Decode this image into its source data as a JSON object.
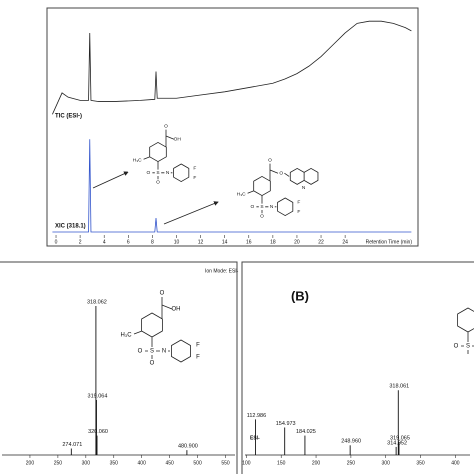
{
  "chart_data": [
    {
      "type": "line",
      "label": "TIC (ESI-)",
      "color": "#222222",
      "x": [
        -0.3,
        0.5,
        1,
        2,
        2.7,
        2.8,
        2.9,
        3.5,
        5,
        7,
        8.2,
        8.3,
        8.4,
        10,
        12,
        14,
        16,
        18,
        19,
        20,
        21,
        22,
        23,
        24,
        25,
        26,
        27,
        28,
        29,
        29.5
      ],
      "values": [
        10,
        30,
        26,
        23,
        23,
        86,
        23,
        22,
        22,
        23,
        24,
        50,
        25,
        25,
        28,
        31,
        35,
        39,
        43,
        48,
        55,
        64,
        75,
        86,
        95,
        97,
        97,
        95,
        91,
        88
      ],
      "xlim": [
        -0.5,
        29.8
      ],
      "ylim": [
        0,
        100
      ]
    },
    {
      "type": "line",
      "label": "XIC (318.1)",
      "color": "#3355cc",
      "x": [
        -0.3,
        2.7,
        2.8,
        2.9,
        8.2,
        8.3,
        8.4,
        29.5
      ],
      "values": [
        0,
        0,
        100,
        0,
        0,
        15,
        0,
        0
      ],
      "xlim": [
        -0.5,
        29.8
      ],
      "ylim": [
        0,
        110
      ],
      "xticks": [
        0,
        2,
        4,
        6,
        8,
        10,
        12,
        14,
        16,
        18,
        20,
        22,
        24
      ],
      "xlabel": "Retention Time (min)",
      "structures": [
        [
          "O",
          "OH",
          "H₃C",
          "O",
          "S",
          "O",
          "N",
          "F",
          "F"
        ],
        [
          "O",
          "O",
          "N",
          "H₃C",
          "O",
          "S",
          "O",
          "N",
          "F",
          "F"
        ]
      ]
    },
    {
      "type": "bar",
      "mode_label": "Ion Mode: ESI-",
      "color": "#111111",
      "x": [
        {
          "value": 274.071,
          "label": "274.071"
        },
        {
          "value": 318.062,
          "label": "318.062"
        },
        {
          "value": 319.064,
          "label": "319.064"
        },
        {
          "value": 320.06,
          "label": "320.060"
        },
        {
          "value": 480.9,
          "label": "480.900"
        }
      ],
      "values": [
        4,
        92,
        34,
        12,
        3
      ],
      "xlim": [
        150,
        567
      ],
      "ylim": [
        0,
        105
      ],
      "xticks": [
        200,
        250,
        300,
        350,
        400,
        450,
        500,
        550
      ],
      "structure": [
        "O",
        "OH",
        "H₃C",
        "O",
        "S",
        "O",
        "N",
        "F",
        "F"
      ]
    },
    {
      "type": "bar",
      "title": "(B)",
      "mode_label": "ESI-",
      "color": "#111111",
      "x": [
        {
          "value": 112.986,
          "label": "112.986"
        },
        {
          "value": 154.973,
          "label": "154.973"
        },
        {
          "value": 184.025,
          "label": "184.025"
        },
        {
          "value": 248.96,
          "label": "248.960"
        },
        {
          "value": 314.952,
          "label": "314.952"
        },
        {
          "value": 318.061,
          "label": "318.061"
        },
        {
          "value": 319.065,
          "label": "319.065"
        }
      ],
      "values": [
        22,
        17,
        12,
        6,
        5,
        40,
        8
      ],
      "xlim": [
        98,
        421
      ],
      "ylim": [
        0,
        105
      ],
      "xticks": [
        100,
        150,
        200,
        250,
        300,
        350,
        400
      ],
      "structure": [
        "O",
        "S",
        "N"
      ]
    }
  ]
}
